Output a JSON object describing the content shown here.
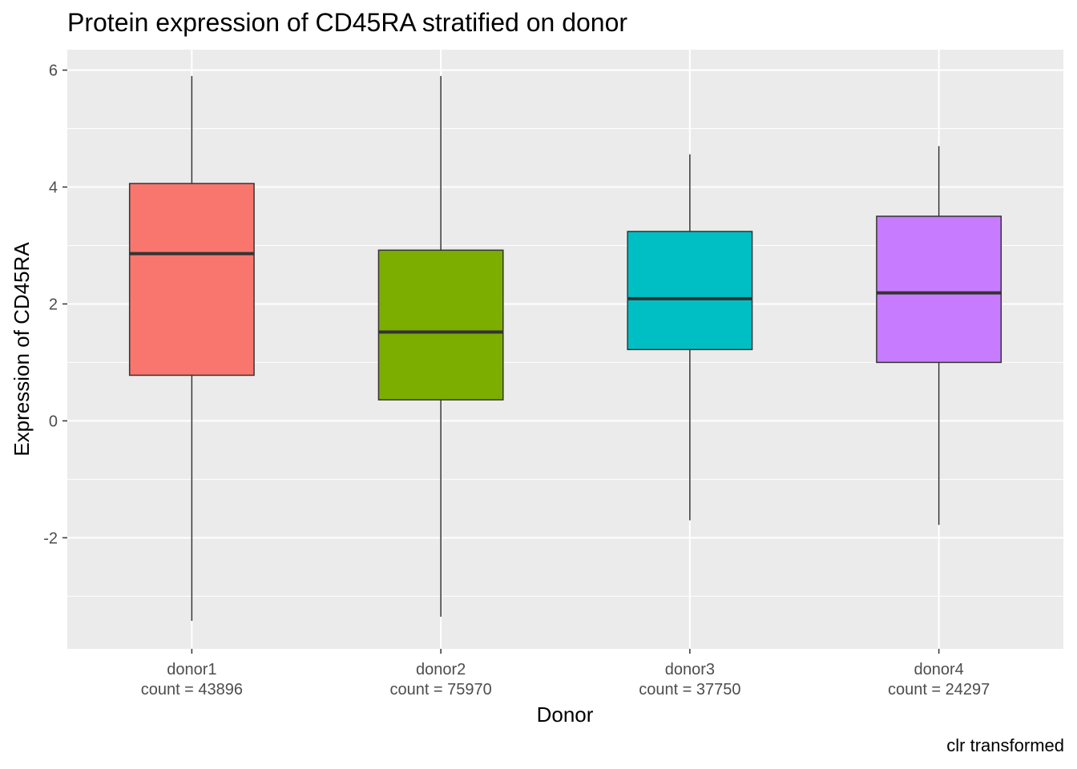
{
  "chart_data": {
    "type": "box",
    "title": "Protein expression of CD45RA stratified on donor",
    "xlabel": "Donor",
    "ylabel": "Expression of CD45RA",
    "caption": "clr transformed",
    "ylim": [
      -3.9,
      6.35
    ],
    "yticks": [
      -2,
      0,
      2,
      4,
      6
    ],
    "ytick_labels": [
      "-2",
      "0",
      "2",
      "4",
      "6"
    ],
    "grid": true,
    "legend": "none",
    "categories": [
      "donor1",
      "donor2",
      "donor3",
      "donor4"
    ],
    "count_labels": [
      "count = 43896",
      "count = 75970",
      "count = 37750",
      "count = 24297"
    ],
    "colors": [
      "#F8766D",
      "#7CAE00",
      "#00BFC4",
      "#C77CFF"
    ],
    "boxes": [
      {
        "name": "donor1",
        "whisker_low": -3.42,
        "q1": 0.78,
        "median": 2.86,
        "q3": 4.06,
        "whisker_high": 5.9
      },
      {
        "name": "donor2",
        "whisker_low": -3.35,
        "q1": 0.36,
        "median": 1.52,
        "q3": 2.92,
        "whisker_high": 5.9
      },
      {
        "name": "donor3",
        "whisker_low": -1.7,
        "q1": 1.22,
        "median": 2.09,
        "q3": 3.24,
        "whisker_high": 4.56
      },
      {
        "name": "donor4",
        "whisker_low": -1.78,
        "q1": 1.0,
        "median": 2.19,
        "q3": 3.5,
        "whisker_high": 4.7
      }
    ]
  }
}
